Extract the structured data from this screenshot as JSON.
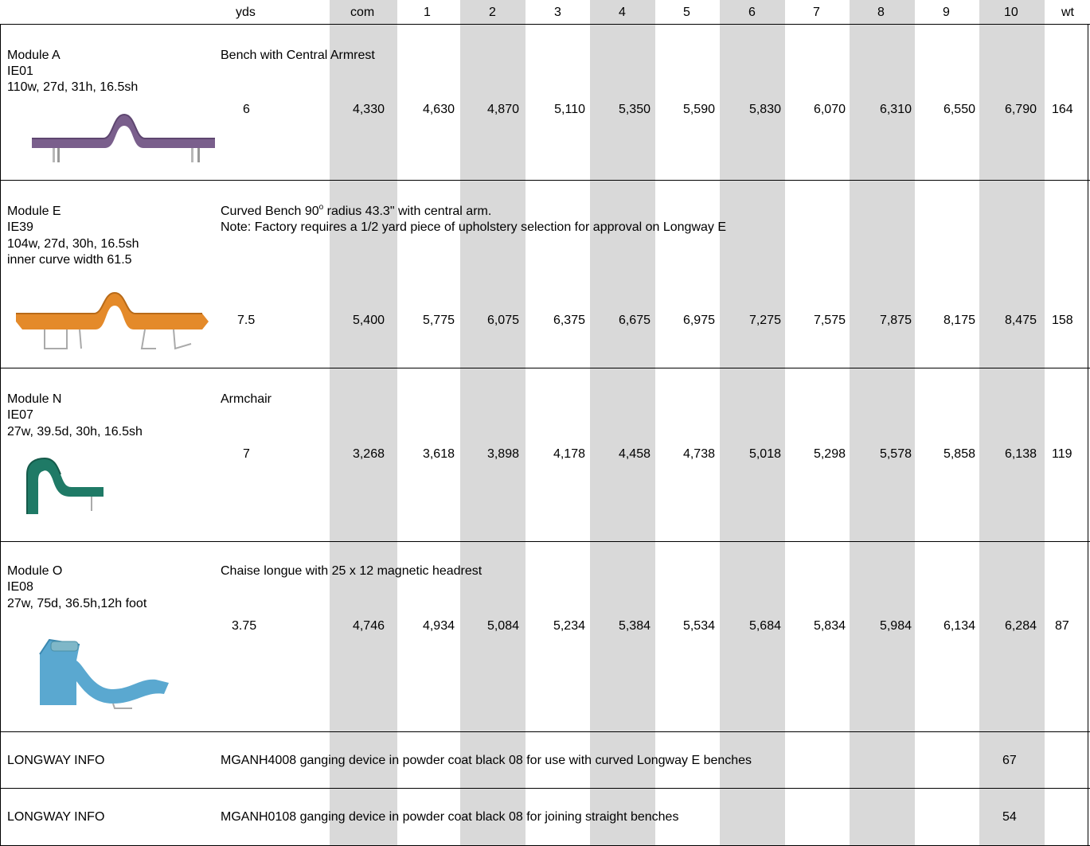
{
  "headers": [
    "yds",
    "com",
    "1",
    "2",
    "3",
    "4",
    "5",
    "6",
    "7",
    "8",
    "9",
    "10",
    "wt"
  ],
  "rows": [
    {
      "module": "Module A",
      "code": "IE01",
      "dims": "110w, 27d, 31h, 16.5sh",
      "description": "Bench with Central Armrest",
      "yds": "6",
      "prices": [
        "4,330",
        "4,630",
        "4,870",
        "5,110",
        "5,350",
        "5,590",
        "5,830",
        "6,070",
        "6,310",
        "6,550",
        "6,790"
      ],
      "wt": "164",
      "image": "purple-bench-icon"
    },
    {
      "module": "Module E",
      "code": "IE39",
      "dims": "104w, 27d, 30h, 16.5sh",
      "dims2": "inner curve width 61.5",
      "description_pre": "Curved Bench 90",
      "description_sup": "o",
      "description_post": " radius 43.3\" with central arm.",
      "note": "Note:  Factory requires a 1/2 yard piece of upholstery selection for approval on Longway E",
      "yds": "7.5",
      "prices": [
        "5,400",
        "5,775",
        "6,075",
        "6,375",
        "6,675",
        "6,975",
        "7,275",
        "7,575",
        "7,875",
        "8,175",
        "8,475"
      ],
      "wt": "158",
      "image": "orange-curved-bench-icon"
    },
    {
      "module": "Module N",
      "code": "IE07",
      "dims": "27w, 39.5d, 30h, 16.5sh",
      "description": "Armchair",
      "yds": "7",
      "prices": [
        "3,268",
        "3,618",
        "3,898",
        "4,178",
        "4,458",
        "4,738",
        "5,018",
        "5,298",
        "5,578",
        "5,858",
        "6,138"
      ],
      "wt": "119",
      "image": "green-armchair-icon"
    },
    {
      "module": "Module O",
      "code": "IE08",
      "dims": "27w, 75d, 36.5h,12h foot",
      "description": "Chaise longue with 25 x 12 magnetic headrest",
      "yds": "3.75",
      "prices": [
        "4,746",
        "4,934",
        "5,084",
        "5,234",
        "5,384",
        "5,534",
        "5,684",
        "5,834",
        "5,984",
        "6,134",
        "6,284"
      ],
      "wt": "87",
      "image": "blue-chaise-icon"
    }
  ],
  "info": [
    {
      "label": "LONGWAY INFO",
      "text": "MGANH4008 ganging device in powder coat black 08 for use with curved Longway E benches",
      "value": "67"
    },
    {
      "label": "LONGWAY INFO",
      "text": "MGANH0108 ganging device in powder coat black 08 for joining straight benches",
      "value": "54"
    }
  ],
  "colors": {
    "shade": "#d9d9d9",
    "purple": "#7a5f8c",
    "orange": "#e48a2a",
    "green": "#1f7a66",
    "blue": "#5aa8d0"
  }
}
